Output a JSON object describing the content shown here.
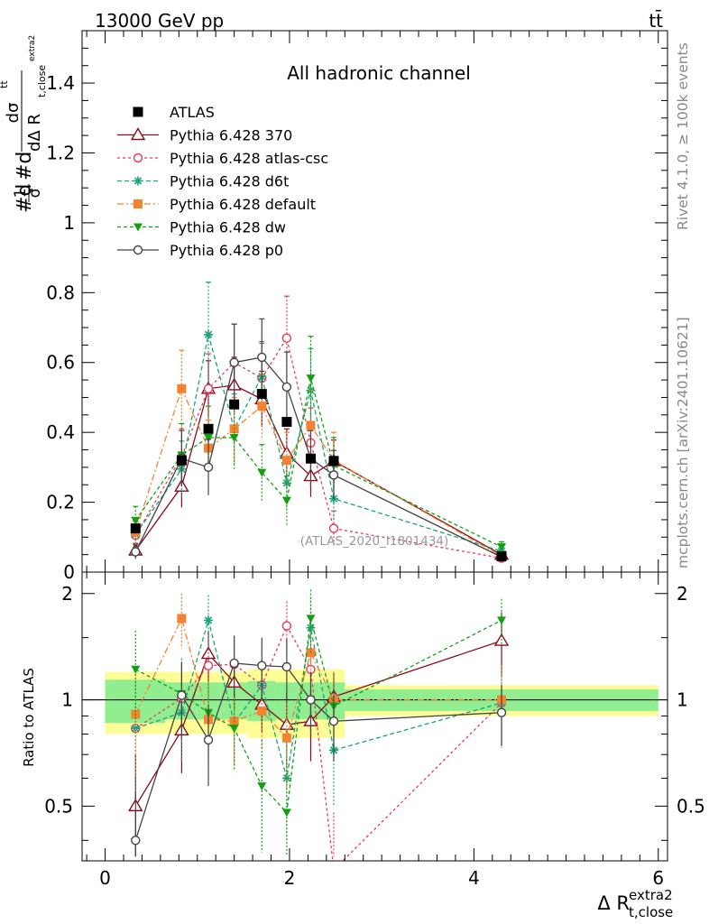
{
  "header": {
    "energy_label": "13000 GeV pp",
    "process_label": "tt̄"
  },
  "side_labels": {
    "rivet": "Rivet 4.1.0, ≥ 100k events",
    "mcplots": "mcplots.cern.ch [arXiv:2401.10621]"
  },
  "chart_data": {
    "type": "scatter",
    "title": "All hadronic channel",
    "watermark": "(ATLAS_2020_I1801434)",
    "ylabel": "#d1/σ#d dσ^tt̄ / dΔ R_t,close^extra2",
    "ylabel_parts": {
      "prefix": "#d",
      "one": "1",
      "sigma": "σ",
      "mid": "#d",
      "num": "dσ",
      "num_sup": "tt̄",
      "den": "dΔ R",
      "den_sub": "t,close",
      "den_sup": "extra2"
    },
    "xlabel_main": "Δ R",
    "xlabel_sup": "extra2",
    "xlabel_sub": "t,close",
    "ratio_ylabel": "Ratio to ATLAS",
    "xlim": [
      -0.25,
      6.1
    ],
    "ylim": [
      0,
      1.55
    ],
    "ratio_ylim": [
      0.35,
      2.3
    ],
    "x_ticks": [
      0,
      2,
      4,
      6
    ],
    "x_tick_labels": [
      "0",
      "2",
      "4",
      "6"
    ],
    "y_ticks": [
      0,
      0.2,
      0.4,
      0.6,
      0.8,
      1,
      1.2,
      1.4
    ],
    "y_tick_labels": [
      "0",
      "0.2",
      "0.4",
      "0.6",
      "0.8",
      "1",
      "1.2",
      "1.4"
    ],
    "ratio_ticks": [
      0.5,
      1,
      2
    ],
    "ratio_tick_labels": [
      "0.5",
      "1",
      "2"
    ],
    "bin_edges": [
      0,
      0.65,
      1.0,
      1.25,
      1.55,
      1.85,
      2.1,
      2.35,
      2.6,
      6.0
    ],
    "x": [
      0.33,
      0.83,
      1.12,
      1.4,
      1.7,
      1.97,
      2.23,
      2.48,
      4.3
    ],
    "data": {
      "name": "ATLAS",
      "values": [
        0.125,
        0.32,
        0.41,
        0.48,
        0.51,
        0.43,
        0.325,
        0.318,
        0.045
      ],
      "ratio_band_inner": [
        0.14,
        0.12,
        0.12,
        0.12,
        0.13,
        0.12,
        0.12,
        0.12,
        0.07
      ],
      "ratio_band_outer": [
        0.2,
        0.2,
        0.2,
        0.2,
        0.22,
        0.22,
        0.22,
        0.22,
        0.1
      ]
    },
    "series": [
      {
        "name": "Pythia 6.428 370",
        "color": "#8b0a1c",
        "dash": "",
        "marker": "triangle-open",
        "values": [
          0.062,
          0.245,
          0.525,
          0.535,
          0.495,
          0.34,
          0.275,
          0.318,
          0.05
        ],
        "errors": [
          0.02,
          0.06,
          0.08,
          0.08,
          0.08,
          0.07,
          0.06,
          0.06,
          0.01
        ],
        "ratio": [
          0.5,
          0.82,
          1.35,
          1.12,
          0.97,
          0.85,
          0.87,
          1.02,
          1.47
        ],
        "ratio_errors": [
          0.2,
          0.2,
          0.22,
          0.18,
          0.16,
          0.2,
          0.2,
          0.18,
          0.3
        ]
      },
      {
        "name": "Pythia 6.428 atlas-csc",
        "color": "#e8395a",
        "dash": "3,3",
        "marker": "circle-open",
        "values": [
          0.105,
          0.33,
          0.525,
          0.6,
          0.555,
          0.67,
          0.37,
          0.125,
          0.04
        ],
        "errors": [
          0.04,
          0.08,
          0.1,
          0.11,
          0.1,
          0.12,
          0.1,
          0.05,
          0.01
        ],
        "ratio": [
          0.83,
          1.01,
          1.25,
          1.26,
          1.1,
          1.62,
          1.22,
          0.33,
          0.98
        ],
        "ratio_errors": [
          0.3,
          0.25,
          0.25,
          0.25,
          0.2,
          0.28,
          0.3,
          0.15,
          0.25
        ]
      },
      {
        "name": "Pythia 6.428 d6t",
        "color": "#1aa37a",
        "dash": "5,3",
        "marker": "star",
        "values": [
          0.108,
          0.295,
          0.68,
          0.41,
          0.56,
          0.255,
          0.52,
          0.21,
          0.06
        ],
        "errors": [
          0.04,
          0.08,
          0.15,
          0.1,
          0.1,
          0.07,
          0.12,
          0.06,
          0.015
        ],
        "ratio": [
          0.83,
          0.92,
          1.68,
          0.86,
          1.1,
          0.6,
          1.6,
          0.72,
          0.98
        ],
        "ratio_errors": [
          0.3,
          0.25,
          0.3,
          0.22,
          0.2,
          0.2,
          0.35,
          0.22,
          0.25
        ]
      },
      {
        "name": "Pythia 6.428 default",
        "color": "#f58231",
        "dash": "7,3,2,3",
        "marker": "square",
        "values": [
          0.115,
          0.525,
          0.355,
          0.41,
          0.475,
          0.32,
          0.42,
          0.32,
          0.045
        ],
        "errors": [
          0.04,
          0.11,
          0.08,
          0.09,
          0.09,
          0.08,
          0.1,
          0.08,
          0.01
        ],
        "ratio": [
          0.91,
          1.7,
          0.88,
          0.87,
          0.93,
          0.78,
          1.36,
          1.0,
          1.0
        ],
        "ratio_errors": [
          0.3,
          0.3,
          0.22,
          0.22,
          0.2,
          0.22,
          0.3,
          0.2,
          0.25
        ]
      },
      {
        "name": "Pythia 6.428 dw",
        "color": "#11a011",
        "dash": "4,3",
        "marker": "triangle-down",
        "values": [
          0.148,
          0.335,
          0.385,
          0.385,
          0.285,
          0.205,
          0.555,
          0.305,
          0.072
        ],
        "errors": [
          0.04,
          0.09,
          0.09,
          0.09,
          0.08,
          0.07,
          0.12,
          0.08,
          0.015
        ],
        "ratio": [
          1.22,
          1.04,
          0.92,
          0.83,
          0.57,
          0.48,
          1.7,
          0.96,
          1.68
        ],
        "ratio_errors": [
          0.35,
          0.27,
          0.22,
          0.2,
          0.2,
          0.2,
          0.35,
          0.22,
          0.25
        ]
      },
      {
        "name": "Pythia 6.428 p0",
        "color": "#444444",
        "dash": "",
        "marker": "circle-open",
        "values": [
          0.058,
          0.325,
          0.3,
          0.6,
          0.615,
          0.53,
          0.325,
          0.278,
          0.043
        ],
        "errors": [
          0.02,
          0.08,
          0.08,
          0.11,
          0.11,
          0.1,
          0.08,
          0.07,
          0.01
        ],
        "ratio": [
          0.4,
          1.03,
          0.77,
          1.27,
          1.25,
          1.24,
          1.0,
          0.87,
          0.92
        ],
        "ratio_errors": [
          0.15,
          0.25,
          0.2,
          0.25,
          0.25,
          0.25,
          0.2,
          0.2,
          0.18
        ]
      }
    ]
  }
}
